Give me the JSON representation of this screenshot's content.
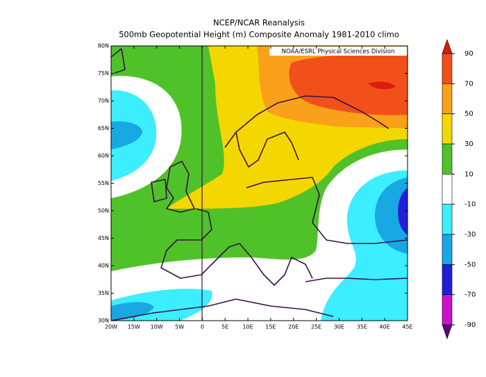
{
  "map": {
    "title": "NCEP/NCAR Reanalysis",
    "subtitle": "500mb Geopotential Height (m) Composite Anomaly 1981-2010 climo",
    "credit": "NOAA/ESRL Physical Sciences Division",
    "xlim": [
      -20,
      45
    ],
    "ylim": [
      30,
      80
    ],
    "xticks": [
      {
        "value": -20,
        "label": "20W"
      },
      {
        "value": -15,
        "label": "15W"
      },
      {
        "value": -10,
        "label": "10W"
      },
      {
        "value": -5,
        "label": "5W"
      },
      0,
      {
        "value": 5,
        "label": "5E"
      },
      {
        "value": 10,
        "label": "10E"
      },
      {
        "value": 15,
        "label": "15E"
      },
      {
        "value": 20,
        "label": "20E"
      },
      {
        "value": 25,
        "label": "25E"
      },
      {
        "value": 30,
        "label": "30E"
      },
      {
        "value": 35,
        "label": "35E"
      },
      {
        "value": 40,
        "label": "40E"
      },
      {
        "value": 45,
        "label": "45E"
      }
    ],
    "yticks": [
      {
        "value": 30,
        "label": "30N"
      },
      {
        "value": 35,
        "label": "35N"
      },
      {
        "value": 40,
        "label": "40N"
      },
      {
        "value": 45,
        "label": "45N"
      },
      {
        "value": 50,
        "label": "50N"
      },
      {
        "value": 55,
        "label": "55N"
      },
      {
        "value": 60,
        "label": "60N"
      },
      {
        "value": 65,
        "label": "65N"
      },
      {
        "value": 70,
        "label": "70N"
      },
      {
        "value": 75,
        "label": "75N"
      },
      {
        "value": 80,
        "label": "80N"
      }
    ],
    "colorbar": {
      "ticks": [
        90,
        70,
        50,
        30,
        10,
        -10,
        -30,
        -50,
        -70,
        -90
      ],
      "colors": [
        "#d81e0c",
        "#f2501a",
        "#f9a11b",
        "#f4d700",
        "#4fc22a",
        "#ffffff",
        "#3ceeff",
        "#17a8e2",
        "#2020d8",
        "#cc10cc",
        "#5a0a6e"
      ]
    }
  }
}
